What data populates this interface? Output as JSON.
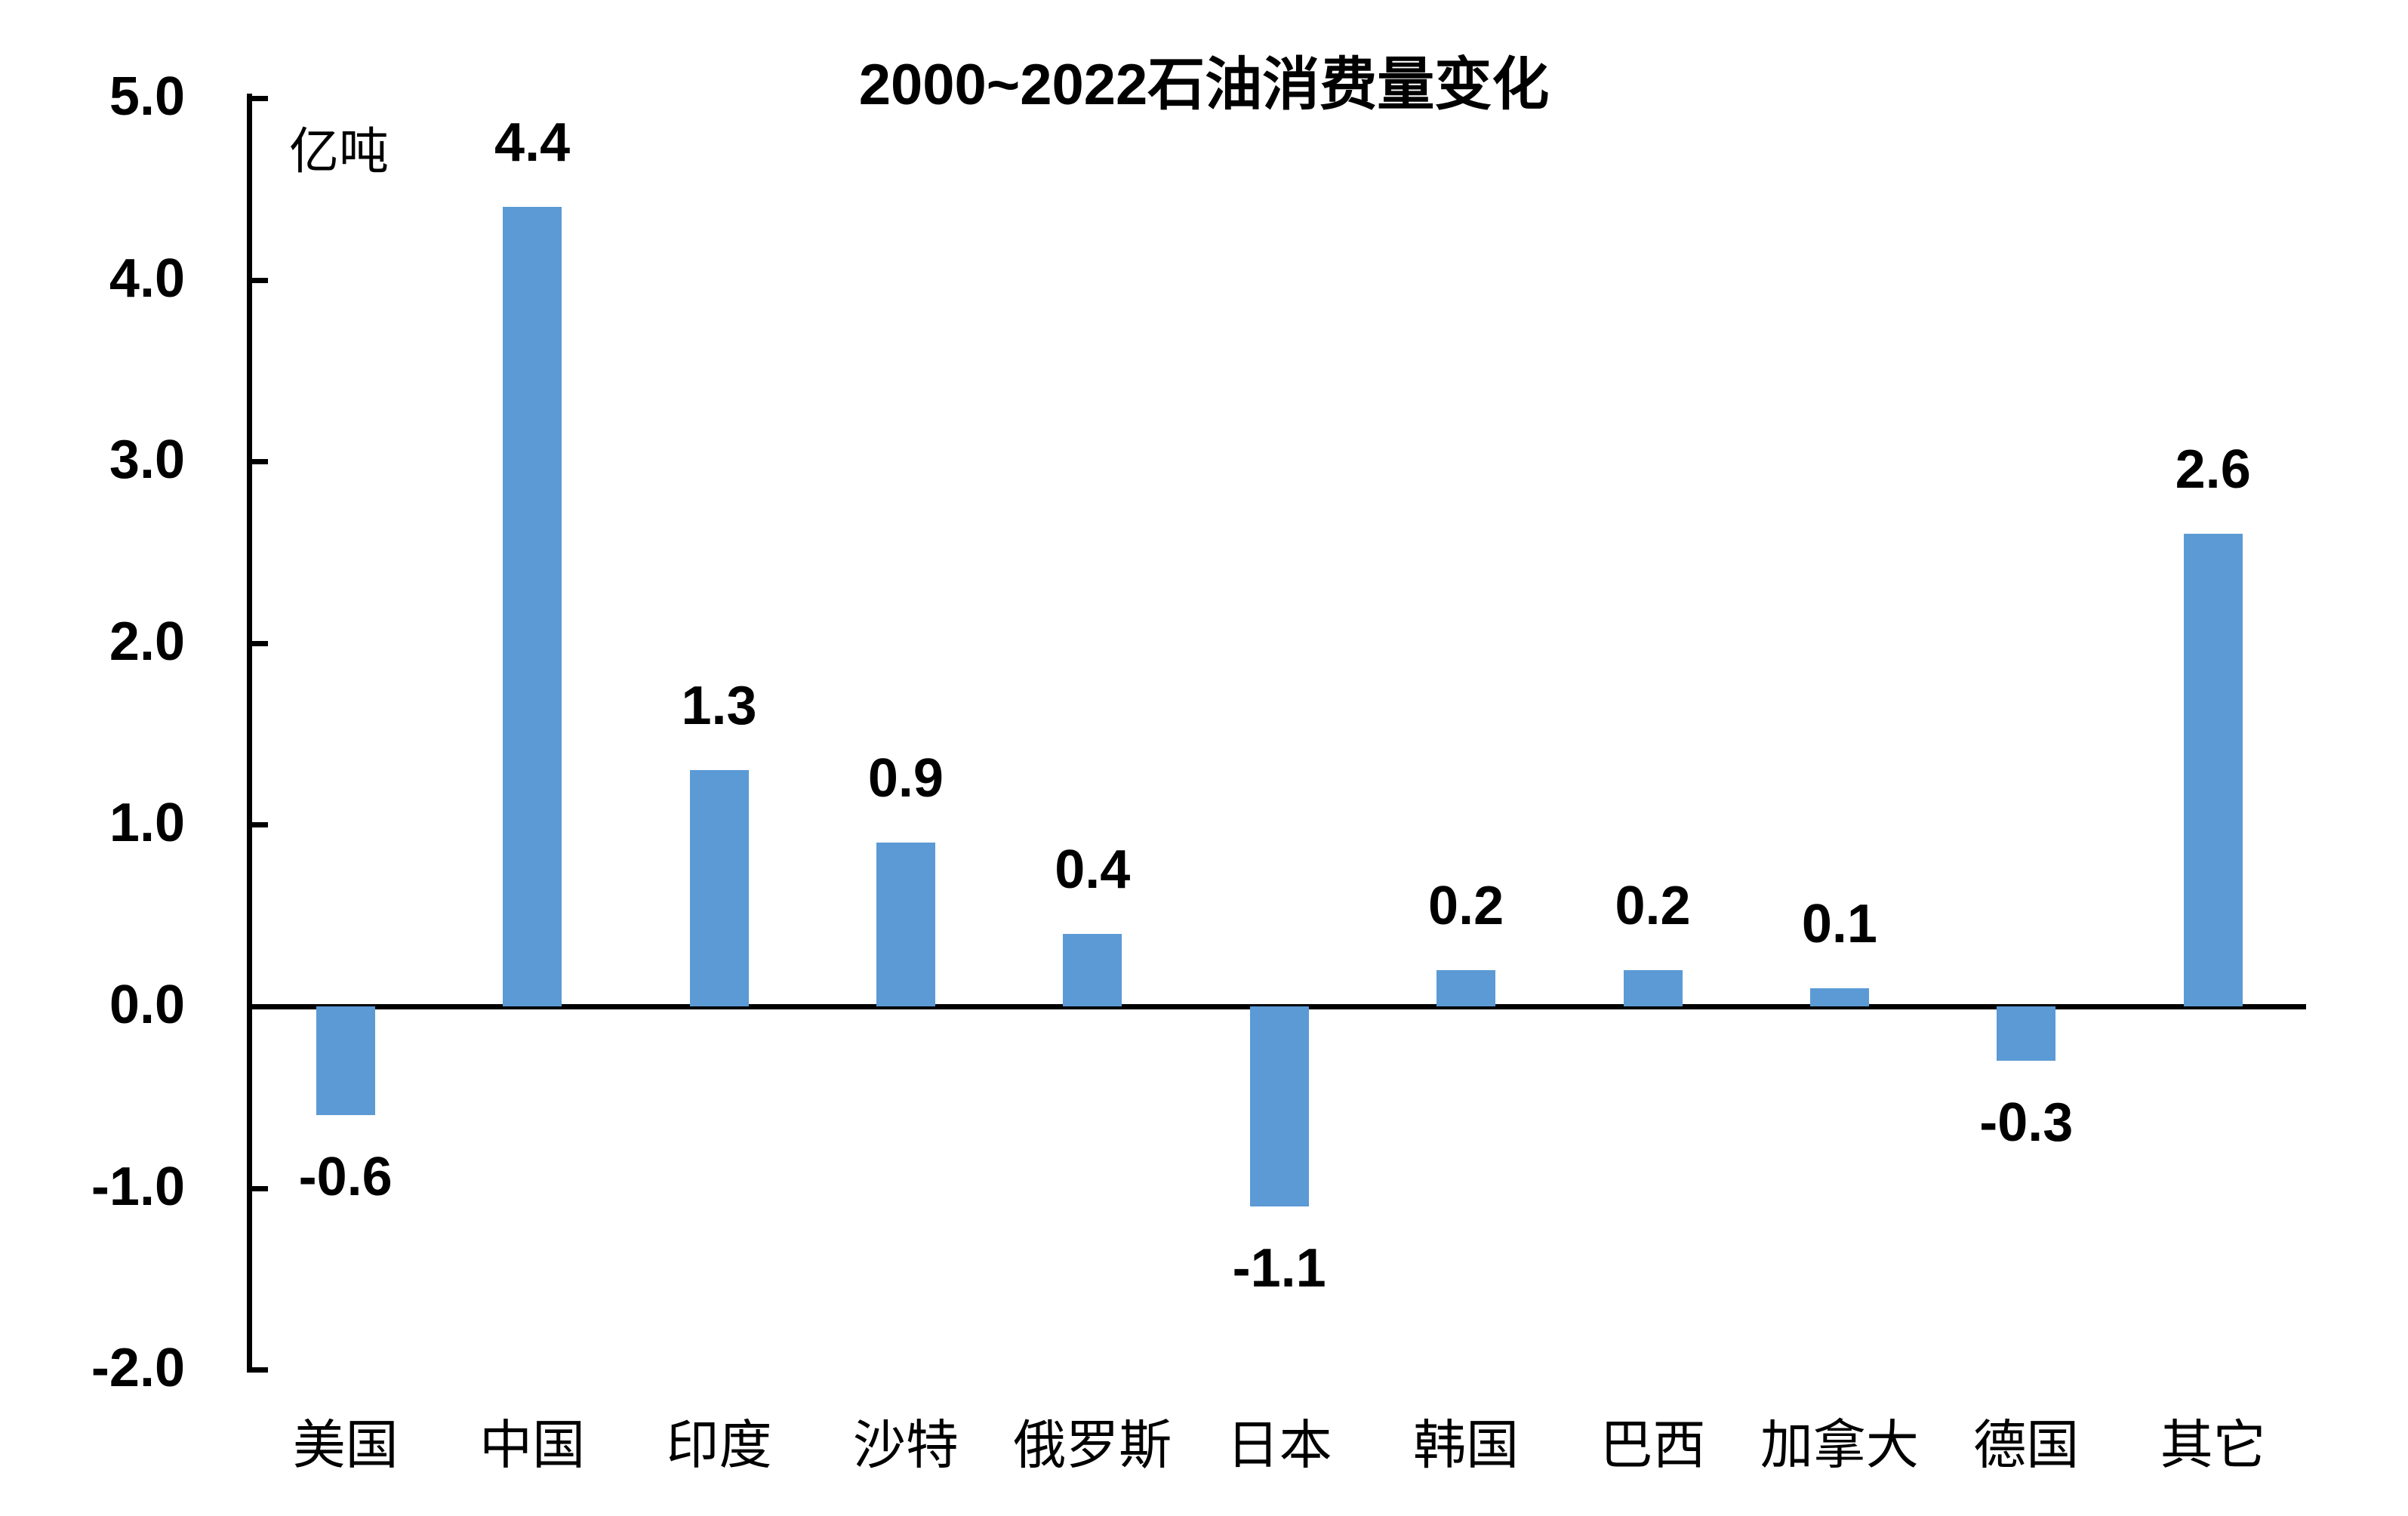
{
  "title": "2000~2022石油消费量变化",
  "unit_label": "亿吨",
  "chart_data": {
    "type": "bar",
    "title": "2000~2022石油消费量变化",
    "ylabel": "亿吨",
    "xlabel": "",
    "categories": [
      "美国",
      "中国",
      "印度",
      "沙特",
      "俄罗斯",
      "日本",
      "韩国",
      "巴西",
      "加拿大",
      "德国",
      "其它"
    ],
    "values": [
      -0.6,
      4.4,
      1.3,
      0.9,
      0.4,
      -1.1,
      0.2,
      0.2,
      0.1,
      -0.3,
      2.6
    ],
    "value_labels": [
      "-0.6",
      "4.4",
      "1.3",
      "0.9",
      "0.4",
      "-1.1",
      "0.2",
      "0.2",
      "0.1",
      "-0.3",
      "2.6"
    ],
    "ylim": [
      -2.0,
      5.0
    ],
    "ytick_values": [
      5.0,
      4.0,
      3.0,
      2.0,
      1.0,
      0.0,
      -1.0,
      -2.0
    ],
    "ytick_labels": [
      "5.0",
      "4.0",
      "3.0",
      "2.0",
      "1.0",
      "0.0",
      "-1.0",
      "-2.0"
    ],
    "bar_color": "#5B9AD5",
    "axis_color": "#000000",
    "text_color": "#000000",
    "background_color": "#FFFFFF",
    "grid": false,
    "legend": "none",
    "value_labels_position": "outside-end"
  }
}
